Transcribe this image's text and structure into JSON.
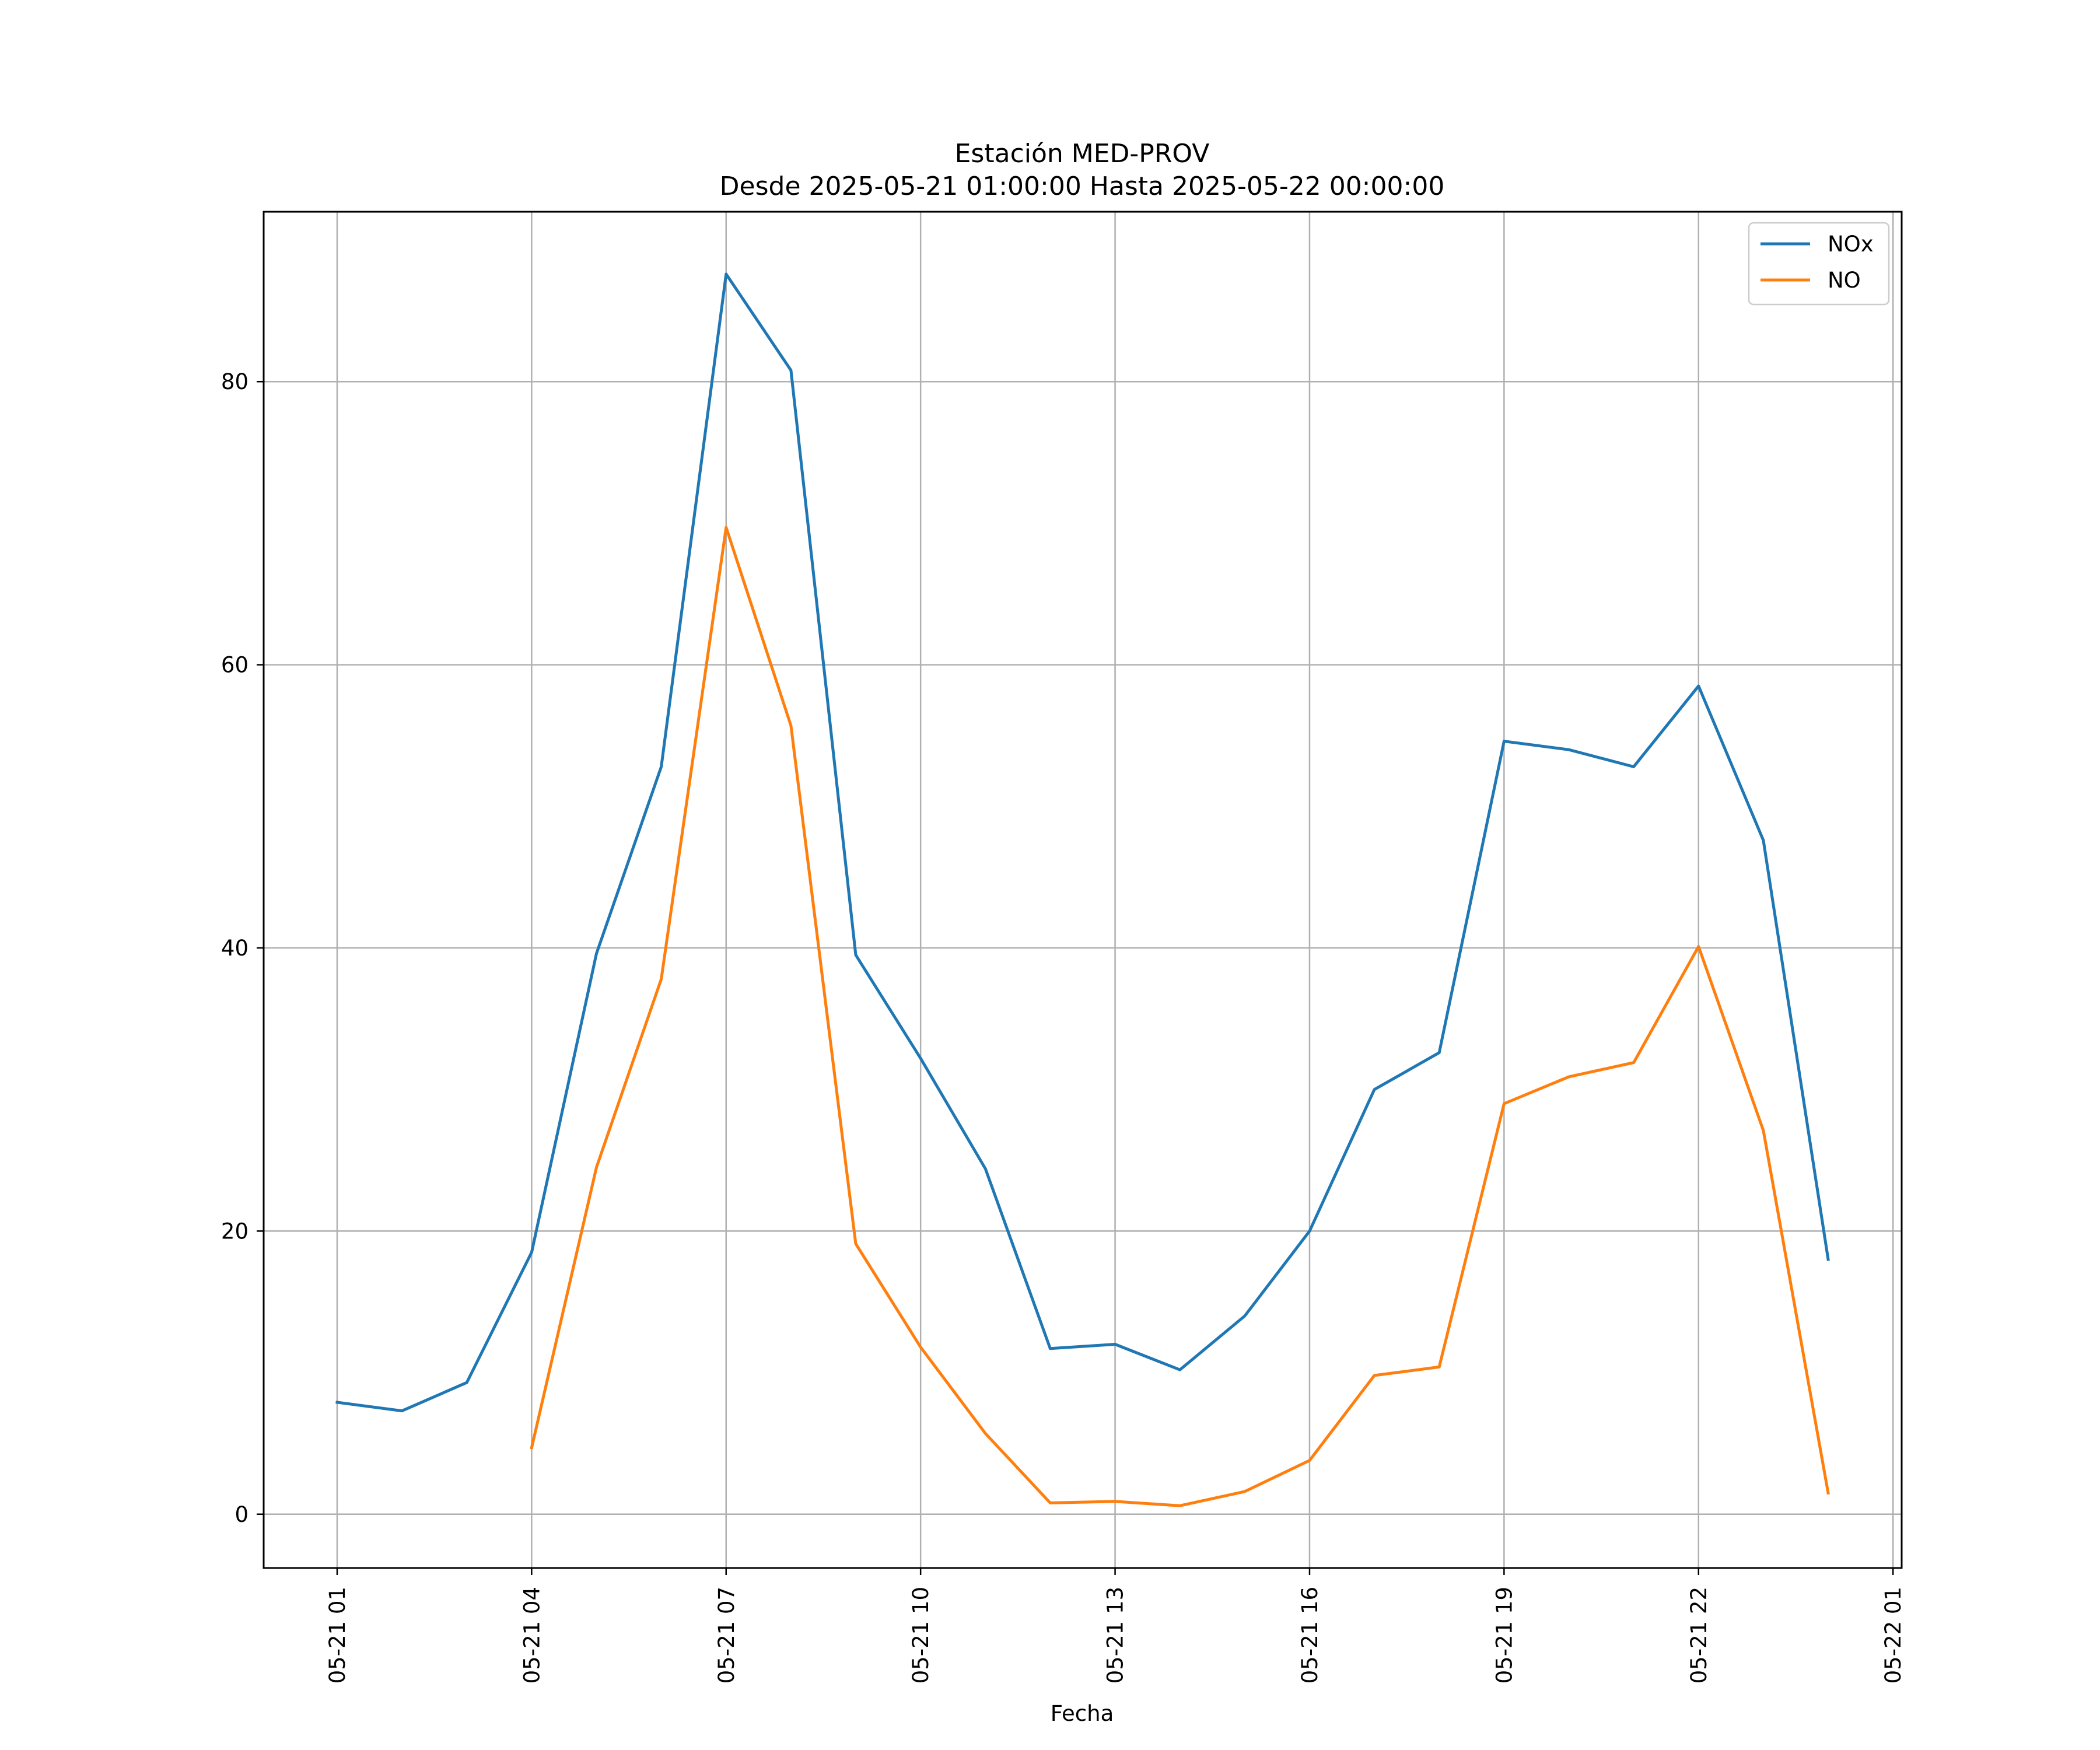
{
  "chart_data": {
    "type": "line",
    "title_line1": "Estación MED-PROV",
    "title_line2": "Desde 2025-05-21 01:00:00 Hasta 2025-05-22 00:00:00",
    "xlabel": "Fecha",
    "ylabel": "",
    "x": [
      "2025-05-21 01:00",
      "2025-05-21 02:00",
      "2025-05-21 03:00",
      "2025-05-21 04:00",
      "2025-05-21 05:00",
      "2025-05-21 06:00",
      "2025-05-21 07:00",
      "2025-05-21 08:00",
      "2025-05-21 09:00",
      "2025-05-21 10:00",
      "2025-05-21 11:00",
      "2025-05-21 12:00",
      "2025-05-21 13:00",
      "2025-05-21 14:00",
      "2025-05-21 15:00",
      "2025-05-21 16:00",
      "2025-05-21 17:00",
      "2025-05-21 18:00",
      "2025-05-21 19:00",
      "2025-05-21 20:00",
      "2025-05-21 21:00",
      "2025-05-21 22:00",
      "2025-05-21 23:00",
      "2025-05-22 00:00"
    ],
    "x_ticks": [
      "05-21 01",
      "05-21 04",
      "05-21 07",
      "05-21 10",
      "05-21 13",
      "05-21 16",
      "05-21 19",
      "05-21 22",
      "05-22 01"
    ],
    "y_ticks": [
      0,
      20,
      40,
      60,
      80
    ],
    "xlim": [
      "2025-05-20 23:52",
      "2025-05-22 01:08"
    ],
    "ylim": [
      -3.8,
      92.0
    ],
    "grid": true,
    "legend_position": "top-right",
    "series": [
      {
        "name": "NOx",
        "color": "#1f77b4",
        "values": [
          7.9,
          7.3,
          9.3,
          18.5,
          39.6,
          52.8,
          87.6,
          80.8,
          39.5,
          32.2,
          24.4,
          11.7,
          12.0,
          10.2,
          14.0,
          20.0,
          30.0,
          32.6,
          54.6,
          54.0,
          52.8,
          58.5,
          47.6,
          18.0
        ]
      },
      {
        "name": "NO",
        "color": "#ff7f0e",
        "values": [
          null,
          null,
          null,
          4.7,
          24.5,
          37.8,
          69.7,
          55.7,
          19.1,
          11.8,
          5.7,
          0.8,
          0.9,
          0.6,
          1.6,
          3.8,
          9.8,
          10.4,
          29.0,
          30.9,
          31.9,
          40.1,
          27.1,
          1.5
        ]
      }
    ]
  }
}
